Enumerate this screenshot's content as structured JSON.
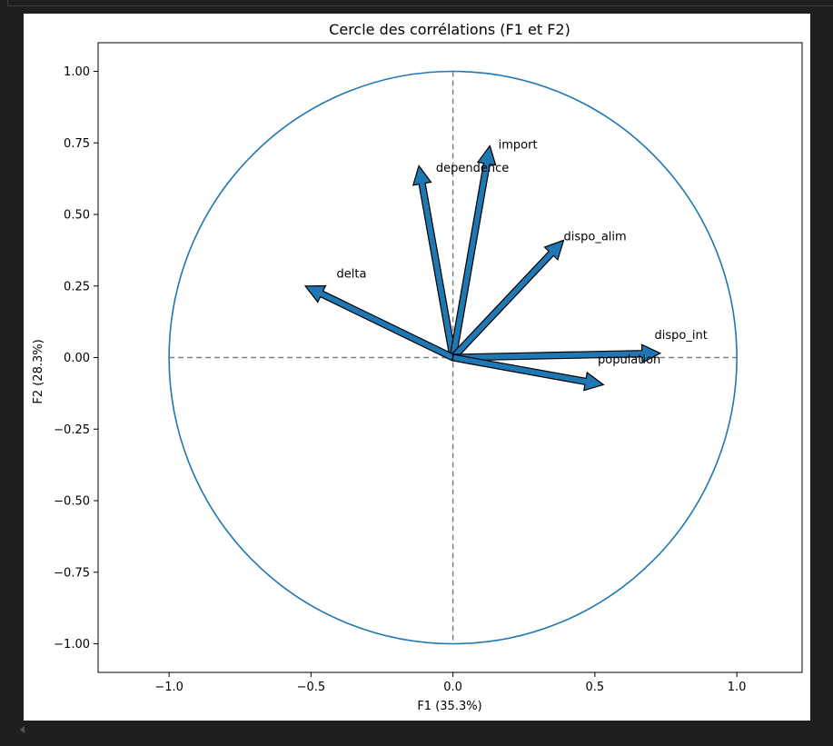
{
  "chart_data": {
    "type": "scatter",
    "title": "Cercle des corrélations (F1 et F2)",
    "xlabel": "F1 (35.3%)",
    "ylabel": "F2 (28.3%)",
    "xlim": [
      -1.25,
      1.23
    ],
    "ylim": [
      -1.1,
      1.1
    ],
    "xticks": [
      -1.0,
      -0.5,
      0.0,
      0.5,
      1.0
    ],
    "xtick_labels": [
      "−1.0",
      "−0.5",
      "0.0",
      "0.5",
      "1.0"
    ],
    "yticks": [
      1.0,
      0.75,
      0.5,
      0.25,
      0.0,
      -0.25,
      -0.5,
      -0.75,
      -1.0
    ],
    "ytick_labels": [
      "1.00",
      "0.75",
      "0.50",
      "0.25",
      "0.00",
      "−0.25",
      "−0.50",
      "−0.75",
      "−1.00"
    ],
    "unit_circle": true,
    "reference_lines": "dashed at x=0 and y=0",
    "arrow_color": "#1f77b4",
    "circle_color": "#1f77b4",
    "dash_color": "#808080",
    "variables": [
      {
        "name": "dependence",
        "x": -0.12,
        "y": 0.67,
        "label_x": -0.06,
        "label_y": 0.65
      },
      {
        "name": "import",
        "x": 0.13,
        "y": 0.74,
        "label_x": 0.16,
        "label_y": 0.73
      },
      {
        "name": "dispo_alim",
        "x": 0.39,
        "y": 0.41,
        "label_x": 0.39,
        "label_y": 0.41
      },
      {
        "name": "delta",
        "x": -0.52,
        "y": 0.25,
        "label_x": -0.41,
        "label_y": 0.28
      },
      {
        "name": "dispo_int",
        "x": 0.73,
        "y": 0.015,
        "label_x": 0.71,
        "label_y": 0.065
      },
      {
        "name": "population",
        "x": 0.53,
        "y": -0.095,
        "label_x": 0.51,
        "label_y": -0.02
      }
    ]
  }
}
